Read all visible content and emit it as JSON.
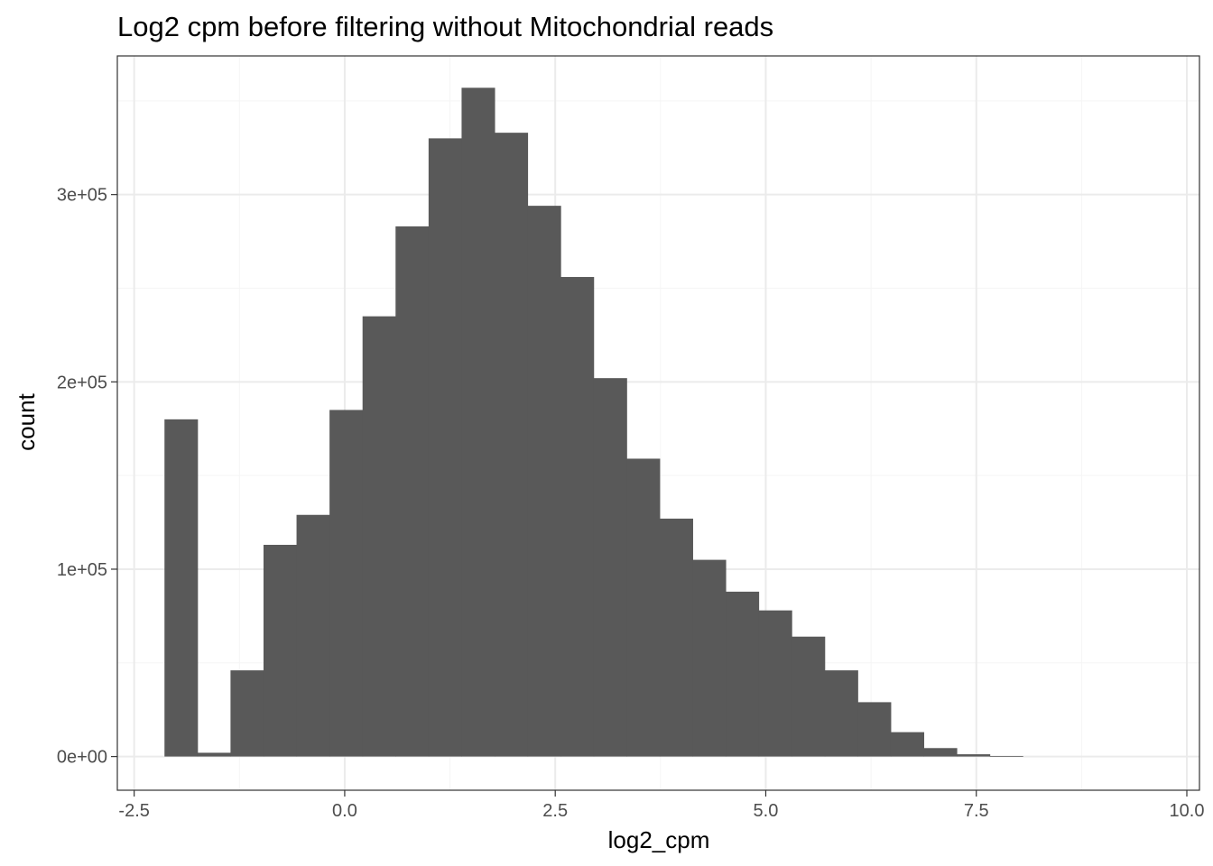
{
  "chart_data": {
    "type": "bar",
    "subtype": "histogram",
    "title": "Log2 cpm before filtering without Mitochondrial reads",
    "xlabel": "log2_cpm",
    "ylabel": "count",
    "xlim": [
      -2.7,
      10.15
    ],
    "ylim": [
      -18000,
      374000
    ],
    "x_ticks": [
      -2.5,
      0.0,
      2.5,
      5.0,
      7.5,
      10.0
    ],
    "x_tick_labels": [
      "-2.5",
      "0.0",
      "2.5",
      "5.0",
      "7.5",
      "10.0"
    ],
    "y_ticks": [
      0,
      100000,
      200000,
      300000
    ],
    "y_tick_labels": [
      "0e+00",
      "1e+05",
      "2e+05",
      "3e+05"
    ],
    "bin_width": 0.392,
    "bins": [
      {
        "x0": -2.14,
        "x1": -1.748,
        "count": 180000
      },
      {
        "x0": -1.748,
        "x1": -1.356,
        "count": 2000
      },
      {
        "x0": -1.356,
        "x1": -0.964,
        "count": 46000
      },
      {
        "x0": -0.964,
        "x1": -0.572,
        "count": 113000
      },
      {
        "x0": -0.572,
        "x1": -0.18,
        "count": 129000
      },
      {
        "x0": -0.18,
        "x1": 0.212,
        "count": 185000
      },
      {
        "x0": 0.212,
        "x1": 0.604,
        "count": 235000
      },
      {
        "x0": 0.604,
        "x1": 0.996,
        "count": 283000
      },
      {
        "x0": 0.996,
        "x1": 1.388,
        "count": 330000
      },
      {
        "x0": 1.388,
        "x1": 1.78,
        "count": 357000
      },
      {
        "x0": 1.78,
        "x1": 2.172,
        "count": 333000
      },
      {
        "x0": 2.172,
        "x1": 2.564,
        "count": 294000
      },
      {
        "x0": 2.564,
        "x1": 2.956,
        "count": 256000
      },
      {
        "x0": 2.956,
        "x1": 3.348,
        "count": 202000
      },
      {
        "x0": 3.348,
        "x1": 3.74,
        "count": 159000
      },
      {
        "x0": 3.74,
        "x1": 4.132,
        "count": 127000
      },
      {
        "x0": 4.132,
        "x1": 4.524,
        "count": 105000
      },
      {
        "x0": 4.524,
        "x1": 4.916,
        "count": 88000
      },
      {
        "x0": 4.916,
        "x1": 5.308,
        "count": 78000
      },
      {
        "x0": 5.308,
        "x1": 5.7,
        "count": 64000
      },
      {
        "x0": 5.7,
        "x1": 6.092,
        "count": 46000
      },
      {
        "x0": 6.092,
        "x1": 6.484,
        "count": 29000
      },
      {
        "x0": 6.484,
        "x1": 6.876,
        "count": 13000
      },
      {
        "x0": 6.876,
        "x1": 7.268,
        "count": 4500
      },
      {
        "x0": 7.268,
        "x1": 7.66,
        "count": 1200
      },
      {
        "x0": 7.66,
        "x1": 8.052,
        "count": 300
      }
    ],
    "grid": true,
    "colors": {
      "bar": "#595959",
      "grid_major": "#ebebeb",
      "grid_minor": "#f5f5f5",
      "panel_border": "#333333",
      "tick_text": "#4d4d4d"
    }
  }
}
